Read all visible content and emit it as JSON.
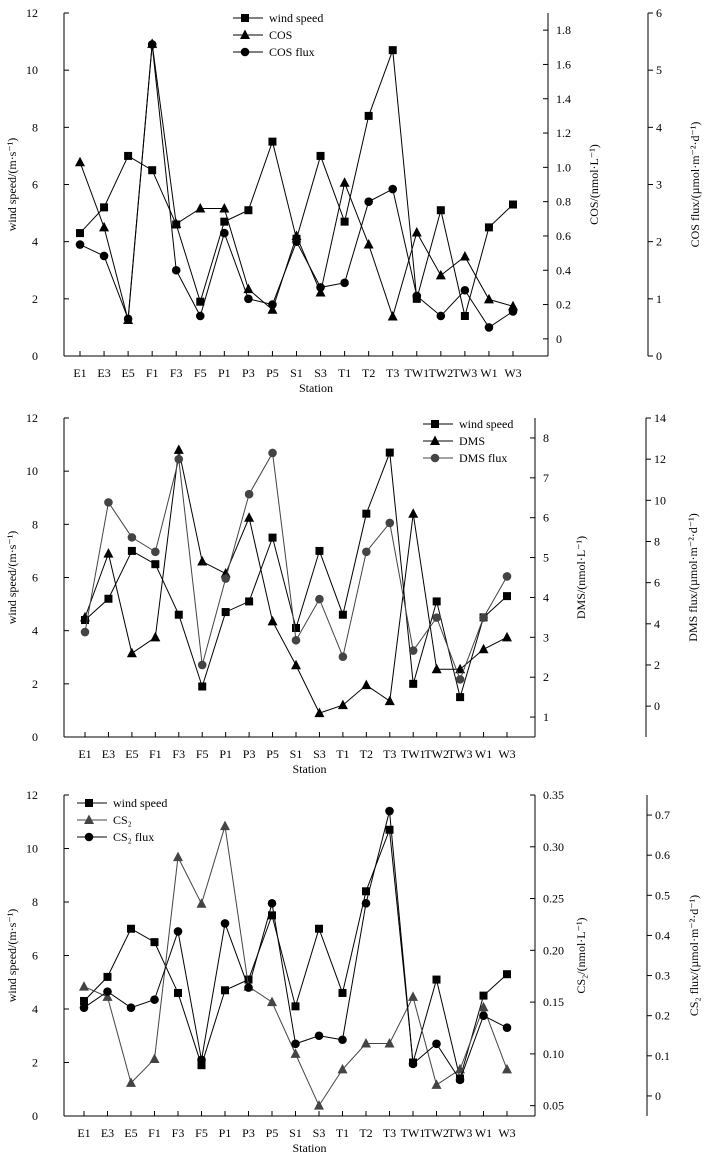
{
  "chart_data": [
    {
      "type": "line",
      "title": "",
      "xlabel": "Station",
      "categories": [
        "E1",
        "E3",
        "E5",
        "F1",
        "F3",
        "F5",
        "P1",
        "P3",
        "P5",
        "S1",
        "S3",
        "T1",
        "T2",
        "T3",
        "TW1",
        "TW2",
        "TW3",
        "W1",
        "W3"
      ],
      "axes": {
        "left": {
          "label": "wind speed/(m·s⁻¹)",
          "ylim": [
            0,
            12
          ],
          "ticks": [
            0,
            2,
            4,
            6,
            8,
            10,
            12
          ]
        },
        "right1": {
          "label": "COS/(nmol·L⁻¹)",
          "ylim": [
            -0.1,
            1.9
          ],
          "ticks": [
            0,
            0.2,
            0.4,
            0.6,
            0.8,
            1.0,
            1.2,
            1.4,
            1.6,
            1.8
          ],
          "tick_labels": [
            "0",
            "0.2",
            "0.4",
            "0.6",
            "0.8",
            "1.0",
            "1.2",
            "1.4",
            "1.6",
            "1.8"
          ]
        },
        "right2": {
          "label": "COS flux/(µmol·m⁻²·d⁻¹)",
          "ylim": [
            0,
            6
          ],
          "ticks": [
            0,
            1,
            2,
            3,
            4,
            5,
            6
          ]
        }
      },
      "legend": {
        "position": "top-center",
        "entries": [
          "wind speed",
          "COS",
          "COS flux"
        ]
      },
      "series": [
        {
          "name": "wind speed",
          "axis": "left",
          "marker": "square",
          "color": "#000000",
          "values": [
            4.3,
            5.2,
            7.0,
            6.5,
            4.6,
            1.9,
            4.7,
            5.1,
            7.5,
            4.1,
            7.0,
            4.7,
            8.4,
            10.7,
            2.0,
            5.1,
            1.4,
            4.5,
            5.3
          ]
        },
        {
          "name": "COS",
          "axis": "right1",
          "marker": "triangle",
          "color": "#000000",
          "values": [
            1.03,
            0.65,
            0.11,
            1.72,
            0.67,
            0.76,
            0.76,
            0.29,
            0.17,
            0.6,
            0.27,
            0.91,
            0.55,
            0.13,
            0.62,
            0.37,
            0.48,
            0.23,
            0.19
          ]
        },
        {
          "name": "COS flux",
          "axis": "right2",
          "marker": "circle",
          "color": "#000000",
          "values": [
            1.95,
            1.75,
            0.65,
            5.45,
            1.5,
            0.7,
            2.15,
            1.0,
            0.9,
            2.0,
            1.2,
            1.28,
            2.7,
            2.92,
            1.05,
            0.7,
            1.15,
            0.5,
            0.78
          ]
        }
      ]
    },
    {
      "type": "line",
      "title": "",
      "xlabel": "Station",
      "categories": [
        "E1",
        "E3",
        "E5",
        "F1",
        "F3",
        "F5",
        "P1",
        "P3",
        "P5",
        "S1",
        "S3",
        "T1",
        "T2",
        "T3",
        "TW1",
        "TW2",
        "TW3",
        "W1",
        "W3"
      ],
      "axes": {
        "left": {
          "label": "wind speed/(m·s⁻¹)",
          "ylim": [
            0,
            12
          ],
          "ticks": [
            0,
            2,
            4,
            6,
            8,
            10,
            12
          ]
        },
        "right1": {
          "label": "DMS/(nmol·L⁻¹)",
          "ylim": [
            0.5,
            8.5
          ],
          "ticks": [
            1,
            2,
            3,
            4,
            5,
            6,
            7,
            8
          ]
        },
        "right2": {
          "label": "DMS flux/(µmol·m⁻²·d⁻¹)",
          "ylim": [
            -1.5,
            14
          ],
          "ticks": [
            0,
            2,
            4,
            6,
            8,
            10,
            12,
            14
          ]
        }
      },
      "legend": {
        "position": "top-right",
        "entries": [
          "wind speed",
          "DMS",
          "DMS flux"
        ]
      },
      "series": [
        {
          "name": "wind speed",
          "axis": "left",
          "marker": "square",
          "color": "#000000",
          "values": [
            4.4,
            5.2,
            7.0,
            6.5,
            4.6,
            1.9,
            4.7,
            5.1,
            7.5,
            4.1,
            7.0,
            4.6,
            8.4,
            10.7,
            2.0,
            5.1,
            1.5,
            4.5,
            5.3
          ]
        },
        {
          "name": "DMS",
          "axis": "right1",
          "marker": "triangle",
          "color": "#000000",
          "values": [
            3.5,
            5.1,
            2.6,
            3.0,
            7.7,
            4.9,
            4.6,
            6.0,
            3.4,
            2.3,
            1.1,
            1.3,
            1.8,
            1.4,
            6.1,
            2.2,
            2.2,
            2.7,
            3.0
          ]
        },
        {
          "name": "DMS flux",
          "axis": "right2",
          "marker": "circle",
          "color": "#444444",
          "values": [
            3.6,
            9.9,
            8.2,
            7.5,
            12.0,
            2.0,
            6.2,
            10.3,
            12.3,
            3.2,
            5.2,
            2.4,
            7.5,
            8.9,
            2.7,
            4.3,
            1.3,
            4.3,
            6.3
          ]
        }
      ]
    },
    {
      "type": "line",
      "title": "",
      "xlabel": "Station",
      "categories": [
        "E1",
        "E3",
        "E5",
        "F1",
        "F3",
        "F5",
        "P1",
        "P3",
        "P5",
        "S1",
        "S3",
        "T1",
        "T2",
        "T3",
        "TW1",
        "TW2",
        "TW3",
        "W1",
        "W3"
      ],
      "axes": {
        "left": {
          "label": "wind speed/(m·s⁻¹)",
          "ylim": [
            0,
            12
          ],
          "ticks": [
            0,
            2,
            4,
            6,
            8,
            10,
            12
          ]
        },
        "right1": {
          "label": "CS₂/(nmol·L⁻¹)",
          "ylim": [
            0.04,
            0.35
          ],
          "ticks": [
            0.05,
            0.1,
            0.15,
            0.2,
            0.25,
            0.3,
            0.35
          ],
          "tick_labels": [
            "0.05",
            "0.10",
            "0.15",
            "0.20",
            "0.25",
            "0.30",
            "0.35"
          ]
        },
        "right2": {
          "label": "CS₂ flux/(µmol·m⁻²·d⁻¹)",
          "ylim": [
            -0.05,
            0.75
          ],
          "ticks": [
            0,
            0.1,
            0.2,
            0.3,
            0.4,
            0.5,
            0.6,
            0.7
          ],
          "tick_labels": [
            "0",
            "0.1",
            "0.2",
            "0.3",
            "0.4",
            "0.5",
            "0.6",
            "0.7"
          ]
        }
      },
      "legend": {
        "position": "top-left",
        "entries": [
          "wind speed",
          "CS₂",
          "CS₂ flux"
        ]
      },
      "series": [
        {
          "name": "wind speed",
          "axis": "left",
          "marker": "square",
          "color": "#000000",
          "values": [
            4.3,
            5.2,
            7.0,
            6.5,
            4.6,
            1.9,
            4.7,
            5.1,
            7.5,
            4.1,
            7.0,
            4.6,
            8.4,
            10.7,
            2.0,
            5.1,
            1.4,
            4.5,
            5.3
          ]
        },
        {
          "name": "CS₂",
          "axis": "right1",
          "marker": "triangle",
          "color": "#444444",
          "values": [
            0.165,
            0.155,
            0.072,
            0.095,
            0.29,
            0.245,
            0.32,
            0.165,
            0.15,
            0.1,
            0.05,
            0.085,
            0.11,
            0.11,
            0.155,
            0.07,
            0.085,
            0.145,
            0.085
          ]
        },
        {
          "name": "CS₂ flux",
          "axis": "right2",
          "marker": "circle",
          "color": "#000000",
          "values": [
            0.22,
            0.26,
            0.22,
            0.24,
            0.41,
            0.09,
            0.43,
            0.27,
            0.48,
            0.13,
            0.15,
            0.14,
            0.48,
            0.71,
            0.08,
            0.13,
            0.04,
            0.2,
            0.17
          ]
        }
      ]
    }
  ]
}
